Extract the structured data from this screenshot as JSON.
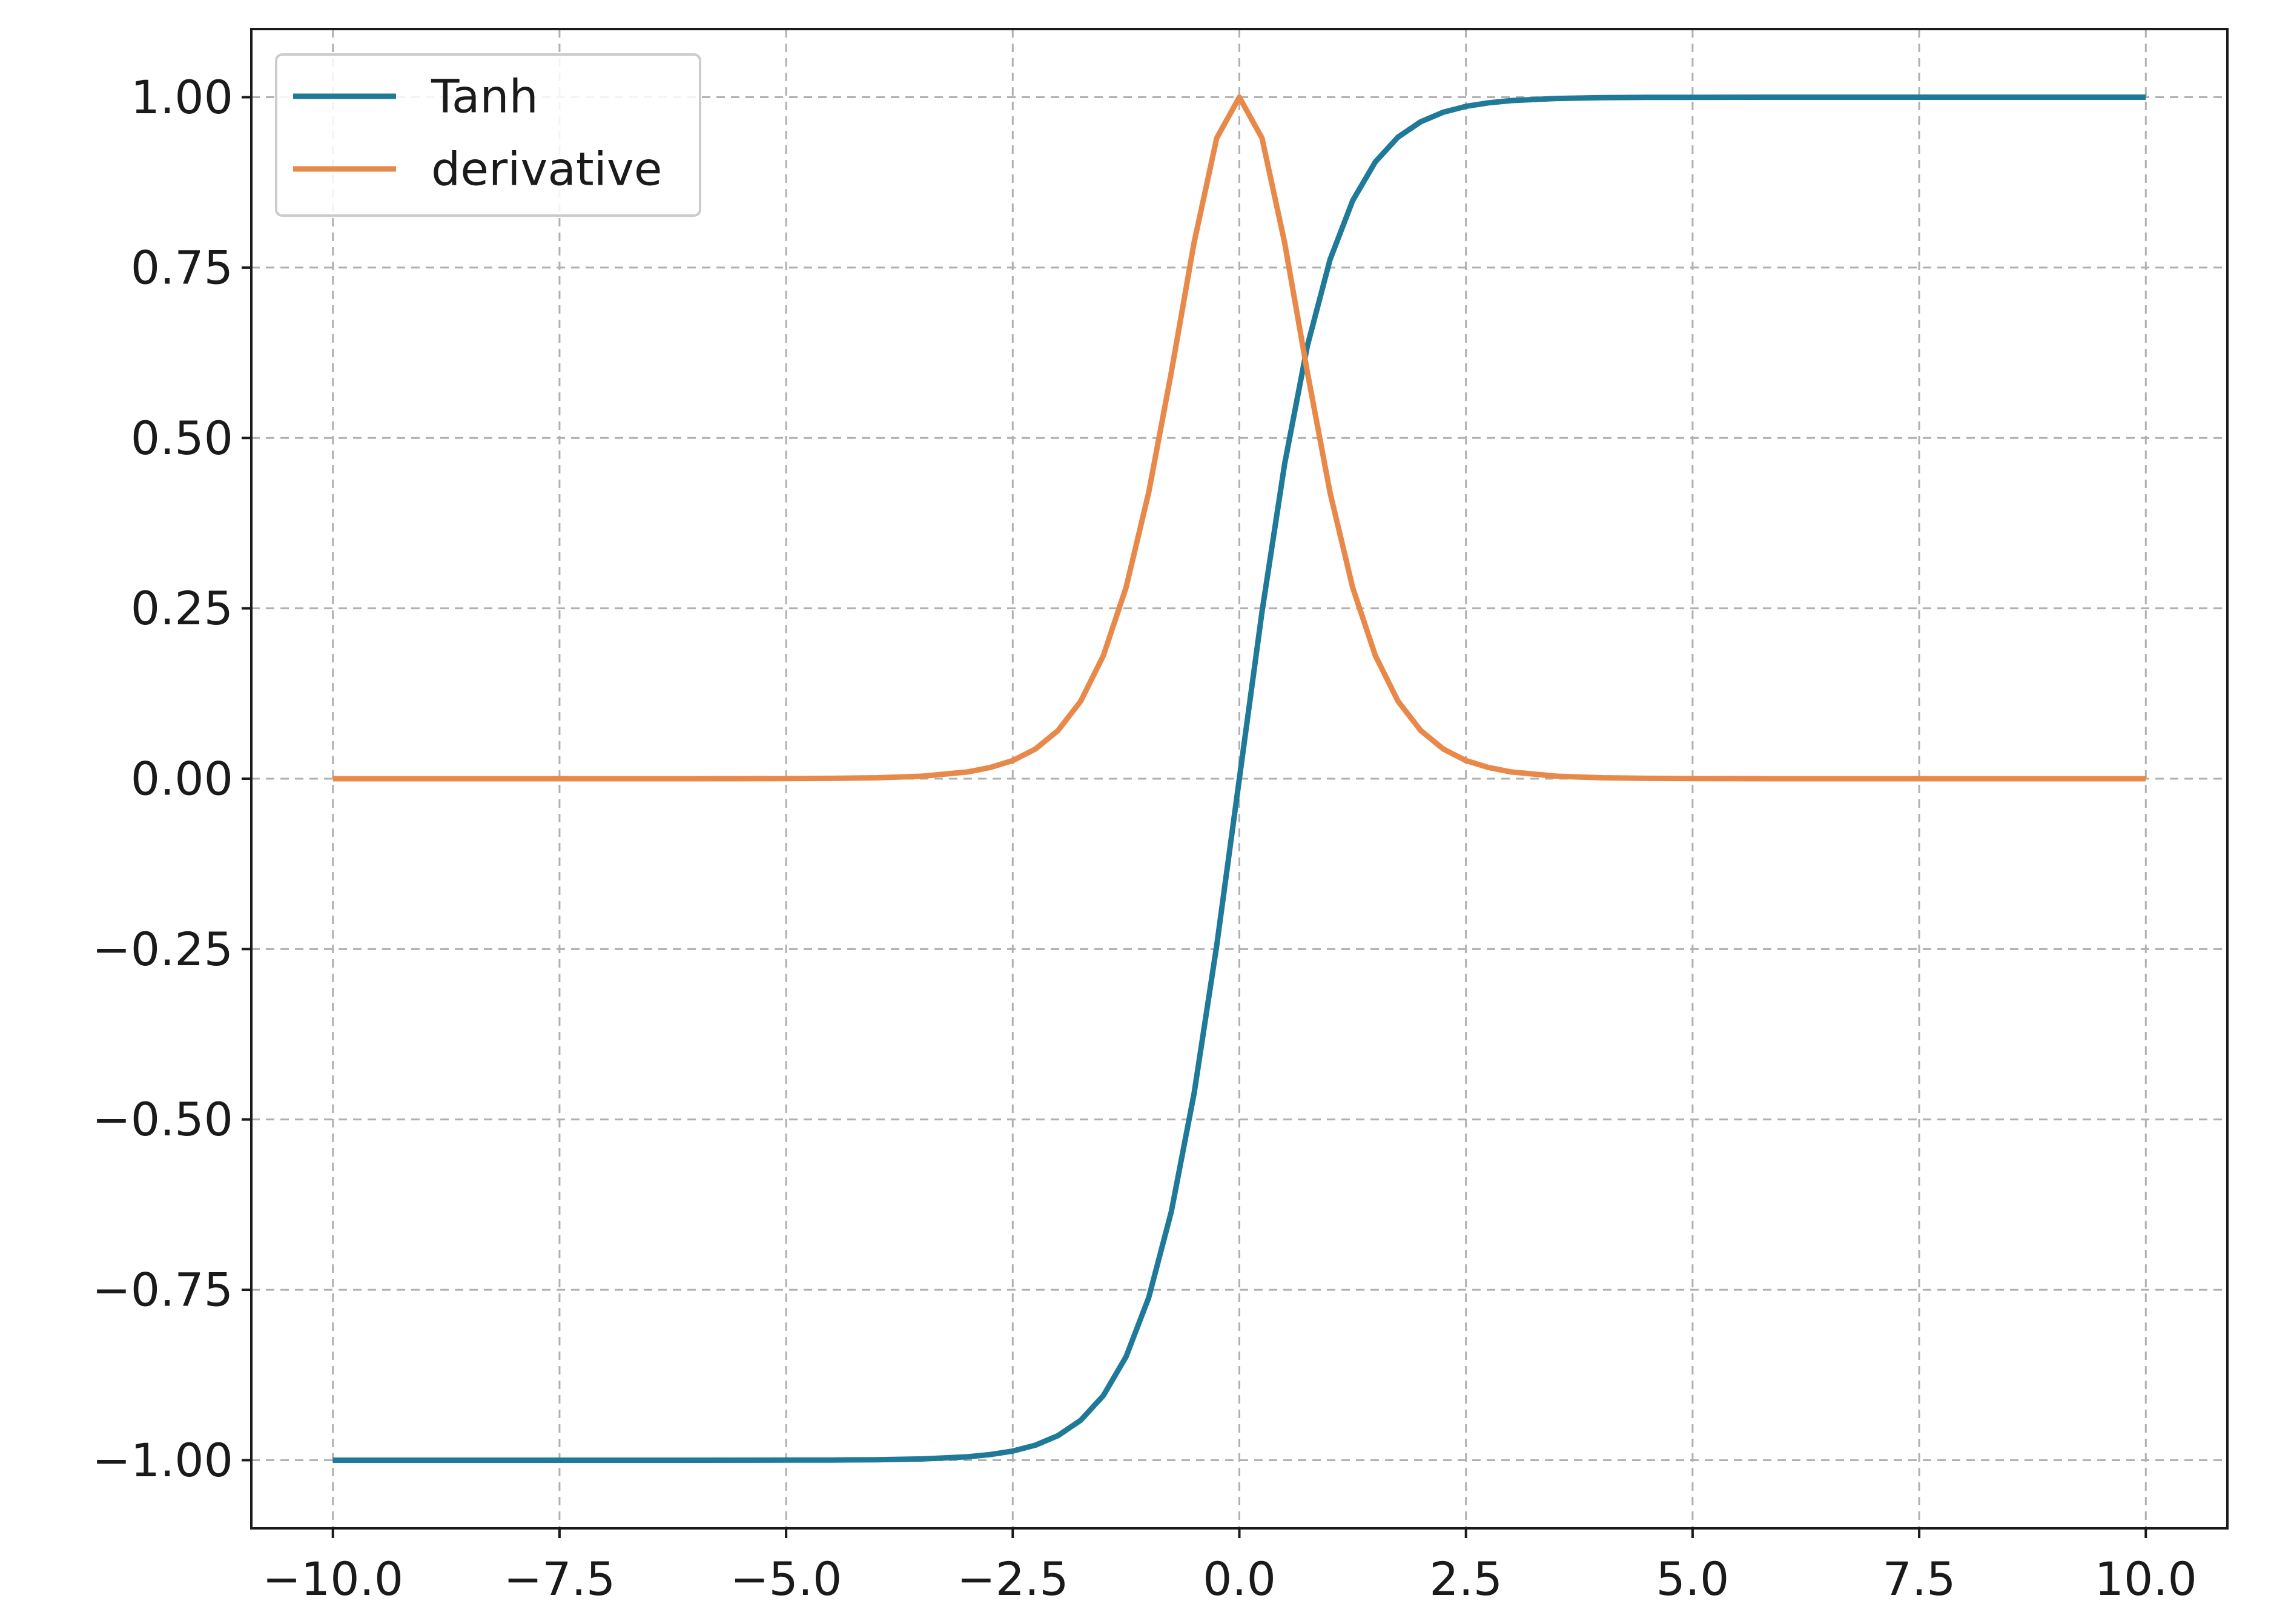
{
  "chart_data": {
    "type": "line",
    "title": "",
    "xlabel": "",
    "ylabel": "",
    "xlim": [
      -10.9,
      10.9
    ],
    "ylim": [
      -1.1,
      1.1
    ],
    "x_ticks": [
      -10.0,
      -7.5,
      -5.0,
      -2.5,
      0.0,
      2.5,
      5.0,
      7.5,
      10.0
    ],
    "x_tick_labels": [
      "−10.0",
      "−7.5",
      "−5.0",
      "−2.5",
      "0.0",
      "2.5",
      "5.0",
      "7.5",
      "10.0"
    ],
    "y_ticks": [
      1.0,
      0.75,
      0.5,
      0.25,
      0.0,
      -0.25,
      -0.5,
      -0.75,
      -1.0
    ],
    "y_tick_labels": [
      "1.00",
      "0.75",
      "0.50",
      "0.25",
      "0.00",
      "−0.25",
      "−0.50",
      "−0.75",
      "−1.00"
    ],
    "grid": true,
    "legend_position": "top-left",
    "series": [
      {
        "name": "Tanh",
        "color": "#1f7a99",
        "x": [
          -10.0,
          -9.0,
          -8.0,
          -7.0,
          -6.0,
          -5.0,
          -4.5,
          -4.0,
          -3.5,
          -3.0,
          -2.75,
          -2.5,
          -2.25,
          -2.0,
          -1.75,
          -1.5,
          -1.25,
          -1.0,
          -0.75,
          -0.5,
          -0.25,
          0.0,
          0.25,
          0.5,
          0.75,
          1.0,
          1.25,
          1.5,
          1.75,
          2.0,
          2.25,
          2.5,
          2.75,
          3.0,
          3.5,
          4.0,
          4.5,
          5.0,
          6.0,
          7.0,
          8.0,
          9.0,
          10.0
        ],
        "values": [
          -1.0,
          -1.0,
          -1.0,
          -1.0,
          -1.0,
          -0.9999,
          -0.9998,
          -0.9993,
          -0.9982,
          -0.9951,
          -0.9918,
          -0.9866,
          -0.978,
          -0.964,
          -0.9414,
          -0.9051,
          -0.8483,
          -0.7616,
          -0.6351,
          -0.4621,
          -0.2449,
          0.0,
          0.2449,
          0.4621,
          0.6351,
          0.7616,
          0.8483,
          0.9051,
          0.9414,
          0.964,
          0.978,
          0.9866,
          0.9918,
          0.9951,
          0.9982,
          0.9993,
          0.9998,
          0.9999,
          1.0,
          1.0,
          1.0,
          1.0,
          1.0
        ]
      },
      {
        "name": "derivative",
        "color": "#e8894a",
        "x": [
          -10.0,
          -9.0,
          -8.0,
          -7.0,
          -6.0,
          -5.0,
          -4.5,
          -4.0,
          -3.5,
          -3.0,
          -2.75,
          -2.5,
          -2.25,
          -2.0,
          -1.75,
          -1.5,
          -1.25,
          -1.0,
          -0.75,
          -0.5,
          -0.25,
          0.0,
          0.25,
          0.5,
          0.75,
          1.0,
          1.25,
          1.5,
          1.75,
          2.0,
          2.25,
          2.5,
          2.75,
          3.0,
          3.5,
          4.0,
          4.5,
          5.0,
          6.0,
          7.0,
          8.0,
          9.0,
          10.0
        ],
        "values": [
          0.0,
          0.0,
          0.0,
          0.0,
          0.0,
          0.0002,
          0.0005,
          0.0013,
          0.0036,
          0.0099,
          0.0164,
          0.0266,
          0.0435,
          0.0707,
          0.1138,
          0.1807,
          0.2805,
          0.42,
          0.5966,
          0.7864,
          0.94,
          1.0,
          0.94,
          0.7864,
          0.5966,
          0.42,
          0.2805,
          0.1807,
          0.1138,
          0.0707,
          0.0435,
          0.0266,
          0.0164,
          0.0099,
          0.0036,
          0.0013,
          0.0005,
          0.0002,
          0.0,
          0.0,
          0.0,
          0.0,
          0.0
        ]
      }
    ]
  }
}
